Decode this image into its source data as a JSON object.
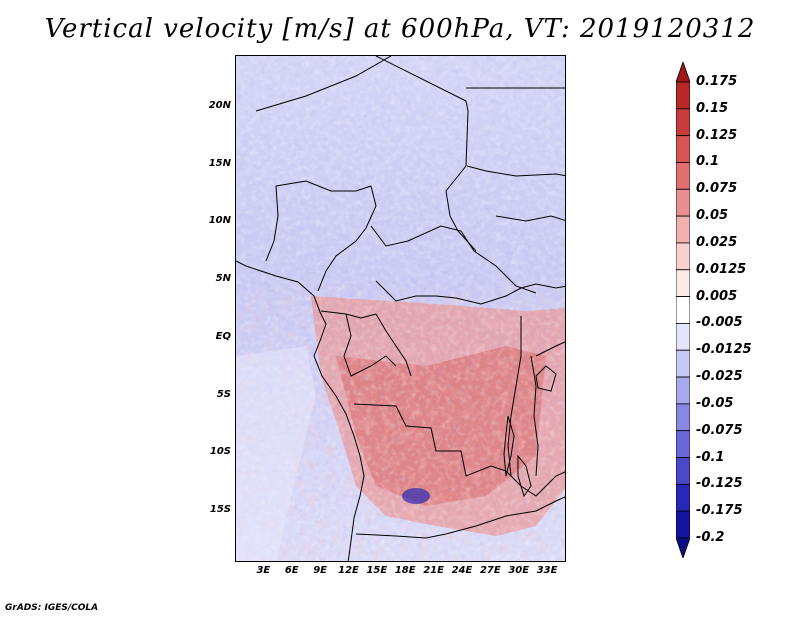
{
  "title": "Vertical velocity [m/s] at 600hPa, VT: 2019120312",
  "footer": "GrADS: IGES/COLA",
  "map": {
    "lat_labels": [
      "20N",
      "15N",
      "10N",
      "5N",
      "EQ",
      "5S",
      "10S",
      "15S"
    ],
    "lat_values": [
      20,
      15,
      10,
      5,
      0,
      -5,
      -10,
      -15
    ],
    "lon_labels": [
      "3E",
      "6E",
      "9E",
      "12E",
      "15E",
      "18E",
      "21E",
      "24E",
      "27E",
      "30E",
      "33E"
    ],
    "lon_values": [
      3,
      6,
      9,
      12,
      15,
      18,
      21,
      24,
      27,
      30,
      33
    ],
    "lat_range": [
      -19.4,
      24.5
    ],
    "lon_range": [
      0,
      35
    ]
  },
  "colorbar": {
    "labels": [
      "0.175",
      "0.15",
      "0.125",
      "0.1",
      "0.075",
      "0.05",
      "0.025",
      "0.0125",
      "0.005",
      "-0.005",
      "-0.0125",
      "-0.025",
      "-0.05",
      "-0.075",
      "-0.1",
      "-0.125",
      "-0.175",
      "-0.2"
    ],
    "colors": [
      "#a01818",
      "#b82828",
      "#c83c3c",
      "#d65454",
      "#e07070",
      "#e89090",
      "#f0b0b0",
      "#f8d0d0",
      "#fde8e8",
      "#ffffff",
      "#e4e4fa",
      "#c8c8f4",
      "#a8a8ec",
      "#8888e2",
      "#6868d8",
      "#4848c8",
      "#2828b8",
      "#1414a0",
      "#0c0c84"
    ]
  }
}
